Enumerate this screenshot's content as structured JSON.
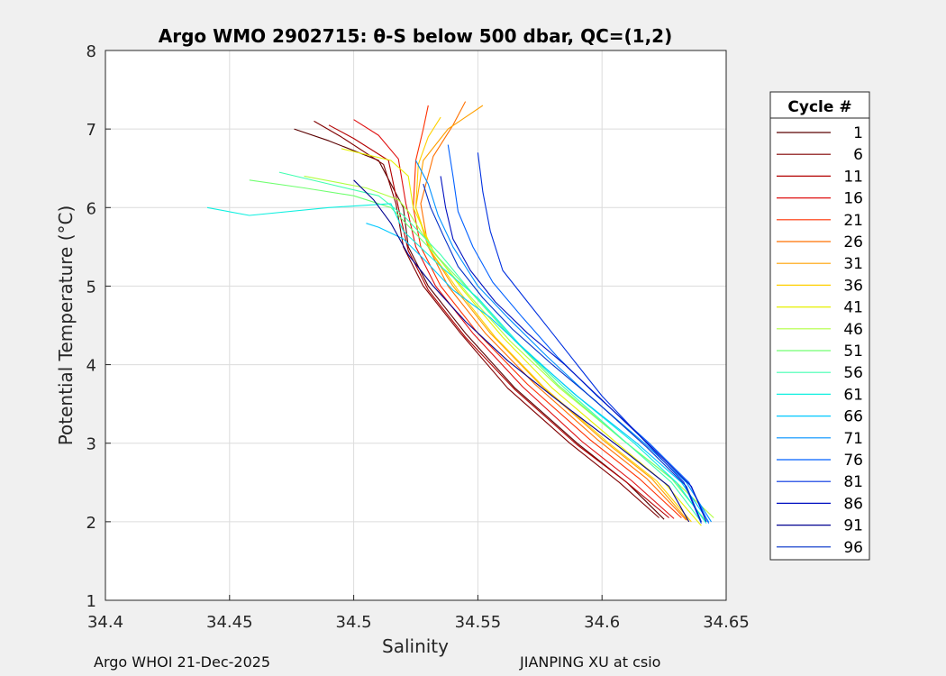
{
  "chart_data": {
    "type": "line",
    "title": "Argo WMO 2902715: θ-S below 500 dbar,  QC=(1,2)",
    "xlabel": "Salinity",
    "ylabel": "Potential Temperature (°C)",
    "xlim": [
      34.4,
      34.65
    ],
    "ylim": [
      1,
      8
    ],
    "xticks": [
      "34.4",
      "34.45",
      "34.5",
      "34.55",
      "34.6",
      "34.65"
    ],
    "yticks": [
      "1",
      "2",
      "3",
      "4",
      "5",
      "6",
      "7",
      "8"
    ],
    "grid": true,
    "legend": {
      "title": "Cycle #",
      "placement": "right",
      "entries": [
        "1",
        "6",
        "11",
        "16",
        "21",
        "26",
        "31",
        "36",
        "41",
        "46",
        "51",
        "56",
        "61",
        "66",
        "71",
        "76",
        "81",
        "86",
        "91",
        "96"
      ],
      "colors": [
        "#5a0000",
        "#800000",
        "#b30000",
        "#e01010",
        "#ff3000",
        "#ff7000",
        "#ffa000",
        "#ffd000",
        "#e6f000",
        "#b0ff40",
        "#70ff70",
        "#40ffb0",
        "#10f0e0",
        "#00c8ff",
        "#0090ff",
        "#0060ff",
        "#0030e0",
        "#0010c0",
        "#000090",
        "#0030c8"
      ]
    },
    "series": [
      {
        "name": "1",
        "x": [
          34.476,
          34.49,
          34.51,
          34.52,
          34.522,
          34.53,
          34.545,
          34.565,
          34.59,
          34.61,
          34.625
        ],
        "y": [
          7.0,
          6.85,
          6.6,
          6.0,
          5.5,
          5.0,
          4.4,
          3.7,
          3.0,
          2.5,
          2.03
        ]
      },
      {
        "name": "6",
        "x": [
          34.484,
          34.495,
          34.512,
          34.517,
          34.52,
          34.528,
          34.543,
          34.562,
          34.587,
          34.607,
          34.623
        ],
        "y": [
          7.1,
          6.9,
          6.55,
          6.05,
          5.5,
          5.0,
          4.4,
          3.7,
          3.0,
          2.5,
          2.05
        ]
      },
      {
        "name": "11",
        "x": [
          34.49,
          34.5,
          34.514,
          34.518,
          34.522,
          34.53,
          34.545,
          34.565,
          34.59,
          34.61,
          34.627
        ],
        "y": [
          7.05,
          6.88,
          6.6,
          6.0,
          5.45,
          4.95,
          4.35,
          3.68,
          2.98,
          2.5,
          2.05
        ]
      },
      {
        "name": "16",
        "x": [
          34.5,
          34.51,
          34.518,
          34.521,
          34.525,
          34.533,
          34.548,
          34.568,
          34.592,
          34.612,
          34.629
        ],
        "y": [
          7.12,
          6.92,
          6.62,
          6.05,
          5.5,
          5.0,
          4.4,
          3.72,
          3.02,
          2.52,
          2.04
        ]
      },
      {
        "name": "21",
        "x": [
          34.53,
          34.528,
          34.525,
          34.524,
          34.527,
          34.535,
          34.55,
          34.57,
          34.595,
          34.615,
          34.632
        ],
        "y": [
          7.3,
          7.0,
          6.6,
          6.0,
          5.5,
          5.0,
          4.4,
          3.75,
          3.05,
          2.55,
          2.05
        ]
      },
      {
        "name": "26",
        "x": [
          34.545,
          34.54,
          34.532,
          34.527,
          34.53,
          34.538,
          34.553,
          34.573,
          34.598,
          34.618,
          34.634
        ],
        "y": [
          7.35,
          7.05,
          6.65,
          6.05,
          5.5,
          5.0,
          4.4,
          3.75,
          3.05,
          2.55,
          2.02
        ]
      },
      {
        "name": "31",
        "x": [
          34.552,
          34.538,
          34.528,
          34.525,
          34.53,
          34.54,
          34.555,
          34.575,
          34.6,
          34.62,
          34.635
        ],
        "y": [
          7.3,
          7.0,
          6.6,
          6.0,
          5.5,
          5.0,
          4.4,
          3.75,
          3.05,
          2.55,
          2.0
        ]
      },
      {
        "name": "36",
        "x": [
          34.535,
          34.53,
          34.526,
          34.525,
          34.531,
          34.542,
          34.557,
          34.577,
          34.602,
          34.622,
          34.636
        ],
        "y": [
          7.15,
          6.9,
          6.55,
          6.0,
          5.45,
          4.95,
          4.35,
          3.7,
          3.02,
          2.52,
          2.0
        ]
      },
      {
        "name": "41",
        "x": [
          34.495,
          34.515,
          34.522,
          34.524,
          34.532,
          34.544,
          34.56,
          34.58,
          34.606,
          34.625,
          34.64
        ],
        "y": [
          6.75,
          6.6,
          6.4,
          6.0,
          5.45,
          4.95,
          4.35,
          3.7,
          3.0,
          2.5,
          1.95
        ]
      },
      {
        "name": "46",
        "x": [
          34.48,
          34.505,
          34.518,
          34.522,
          34.533,
          34.546,
          34.563,
          34.583,
          34.61,
          34.63,
          34.645
        ],
        "y": [
          6.4,
          6.25,
          6.1,
          5.95,
          5.4,
          4.9,
          4.3,
          3.7,
          3.0,
          2.5,
          2.05
        ]
      },
      {
        "name": "51",
        "x": [
          34.458,
          34.48,
          34.5,
          34.515,
          34.53,
          34.545,
          34.562,
          34.582,
          34.608,
          34.628,
          34.642
        ],
        "y": [
          6.35,
          6.25,
          6.15,
          6.0,
          5.5,
          5.0,
          4.4,
          3.75,
          3.05,
          2.55,
          2.0
        ]
      },
      {
        "name": "56",
        "x": [
          34.47,
          34.49,
          34.51,
          34.52,
          34.535,
          34.548,
          34.565,
          34.585,
          34.61,
          34.628,
          34.64
        ],
        "y": [
          6.45,
          6.3,
          6.15,
          5.9,
          5.4,
          4.9,
          4.3,
          3.7,
          3.0,
          2.5,
          2.0
        ]
      },
      {
        "name": "61",
        "x": [
          34.441,
          34.458,
          34.49,
          34.515,
          34.52,
          34.535,
          34.55,
          34.567,
          34.588,
          34.613,
          34.63,
          34.642
        ],
        "y": [
          6.0,
          5.9,
          6.0,
          6.05,
          5.7,
          5.25,
          4.85,
          4.25,
          3.65,
          3.0,
          2.5,
          1.98
        ]
      },
      {
        "name": "66",
        "x": [
          34.505,
          34.51,
          34.52,
          34.528,
          34.54,
          34.555,
          34.572,
          34.59,
          34.614,
          34.632,
          34.643
        ],
        "y": [
          5.8,
          5.75,
          5.6,
          5.35,
          4.95,
          4.6,
          4.1,
          3.6,
          3.0,
          2.5,
          2.0
        ]
      },
      {
        "name": "71",
        "x": [
          34.525,
          34.53,
          34.534,
          34.54,
          34.55,
          34.562,
          34.578,
          34.595,
          34.617,
          34.634,
          34.644
        ],
        "y": [
          6.6,
          6.3,
          5.9,
          5.5,
          5.0,
          4.6,
          4.1,
          3.6,
          3.0,
          2.5,
          2.0
        ]
      },
      {
        "name": "76",
        "x": [
          34.538,
          34.54,
          34.542,
          34.548,
          34.556,
          34.568,
          34.582,
          34.598,
          34.619,
          34.635,
          34.643
        ],
        "y": [
          6.8,
          6.4,
          5.95,
          5.5,
          5.05,
          4.6,
          4.1,
          3.6,
          3.0,
          2.5,
          1.98
        ]
      },
      {
        "name": "81",
        "x": [
          34.55,
          34.552,
          34.555,
          34.56,
          34.57,
          34.58,
          34.59,
          34.6,
          34.618,
          34.633,
          34.64
        ],
        "y": [
          6.7,
          6.2,
          5.7,
          5.2,
          4.8,
          4.4,
          4.0,
          3.6,
          3.0,
          2.5,
          1.98
        ]
      },
      {
        "name": "86",
        "x": [
          34.535,
          34.537,
          34.54,
          34.547,
          34.557,
          34.57,
          34.585,
          34.6,
          34.62,
          34.636,
          34.642
        ],
        "y": [
          6.4,
          6.0,
          5.6,
          5.2,
          4.8,
          4.4,
          4.0,
          3.55,
          2.95,
          2.45,
          2.0
        ]
      },
      {
        "name": "91",
        "x": [
          34.5,
          34.508,
          34.515,
          34.522,
          34.532,
          34.545,
          34.562,
          34.582,
          34.607,
          34.627,
          34.635
        ],
        "y": [
          6.35,
          6.1,
          5.8,
          5.4,
          5.0,
          4.55,
          4.05,
          3.55,
          2.95,
          2.45,
          2.0
        ]
      },
      {
        "name": "96",
        "x": [
          34.528,
          34.531,
          34.536,
          34.542,
          34.552,
          34.564,
          34.58,
          34.597,
          34.618,
          34.634,
          34.64
        ],
        "y": [
          6.3,
          6.0,
          5.65,
          5.25,
          4.85,
          4.45,
          4.0,
          3.55,
          2.95,
          2.45,
          2.0
        ]
      }
    ]
  },
  "footer": {
    "left": "Argo WHOI 21-Dec-2025",
    "right": "JIANPING XU at csio"
  }
}
